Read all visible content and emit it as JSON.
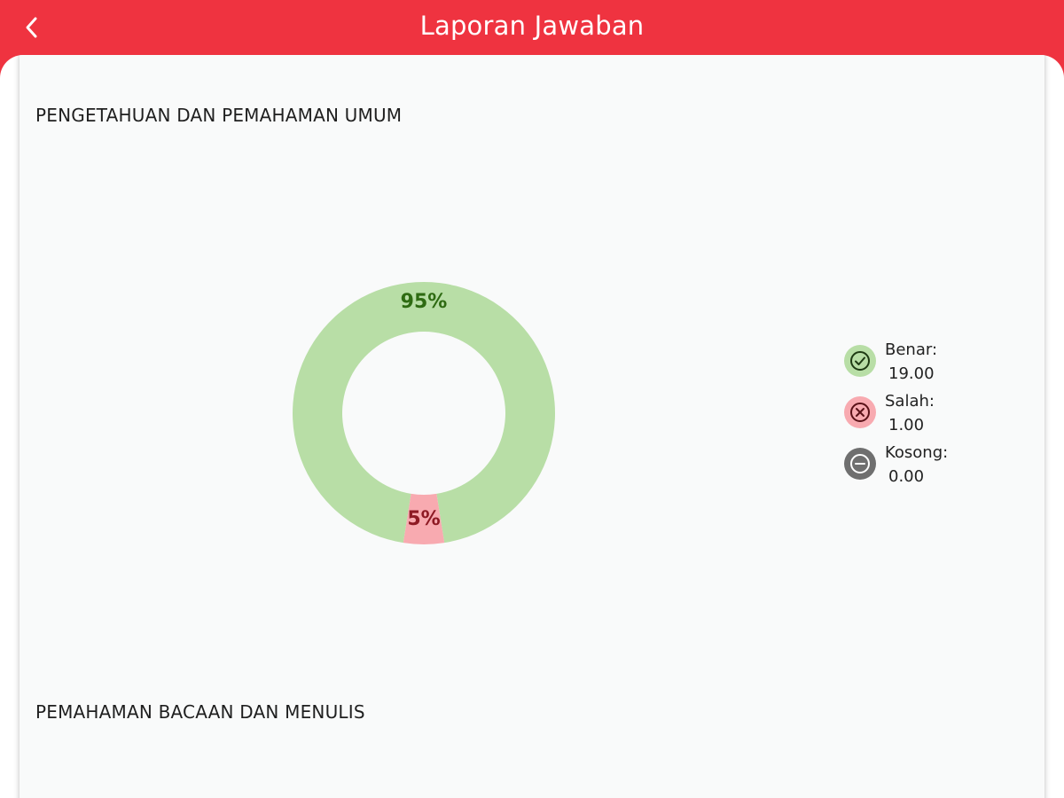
{
  "header": {
    "title": "Laporan Jawaban",
    "back_icon": "chevron-left-icon",
    "background_color": "#ef3340"
  },
  "sections": [
    {
      "title": "PENGETAHUAN DAN PEMAHAMAN UMUM",
      "legend": [
        {
          "label": "Benar:",
          "value": "19.00",
          "icon": "check-circle-icon",
          "color": "#b8dea6"
        },
        {
          "label": "Salah:",
          "value": "1.00",
          "icon": "x-circle-icon",
          "color": "#f8aab0"
        },
        {
          "label": "Kosong:",
          "value": "0.00",
          "icon": "minus-circle-icon",
          "color": "#6f6f6f"
        }
      ]
    },
    {
      "title": "PEMAHAMAN BACAAN DAN MENULIS"
    }
  ],
  "chart_data": {
    "type": "pie",
    "variant": "donut",
    "categories": [
      "Benar",
      "Salah",
      "Kosong"
    ],
    "values": [
      19,
      1,
      0
    ],
    "data_labels": [
      "95%",
      "5%",
      ""
    ],
    "colors": [
      "#b8dea6",
      "#f8aab0",
      "#6f6f6f"
    ],
    "label_colors": [
      "#2e6b12",
      "#8e1a24",
      "#333333"
    ]
  }
}
